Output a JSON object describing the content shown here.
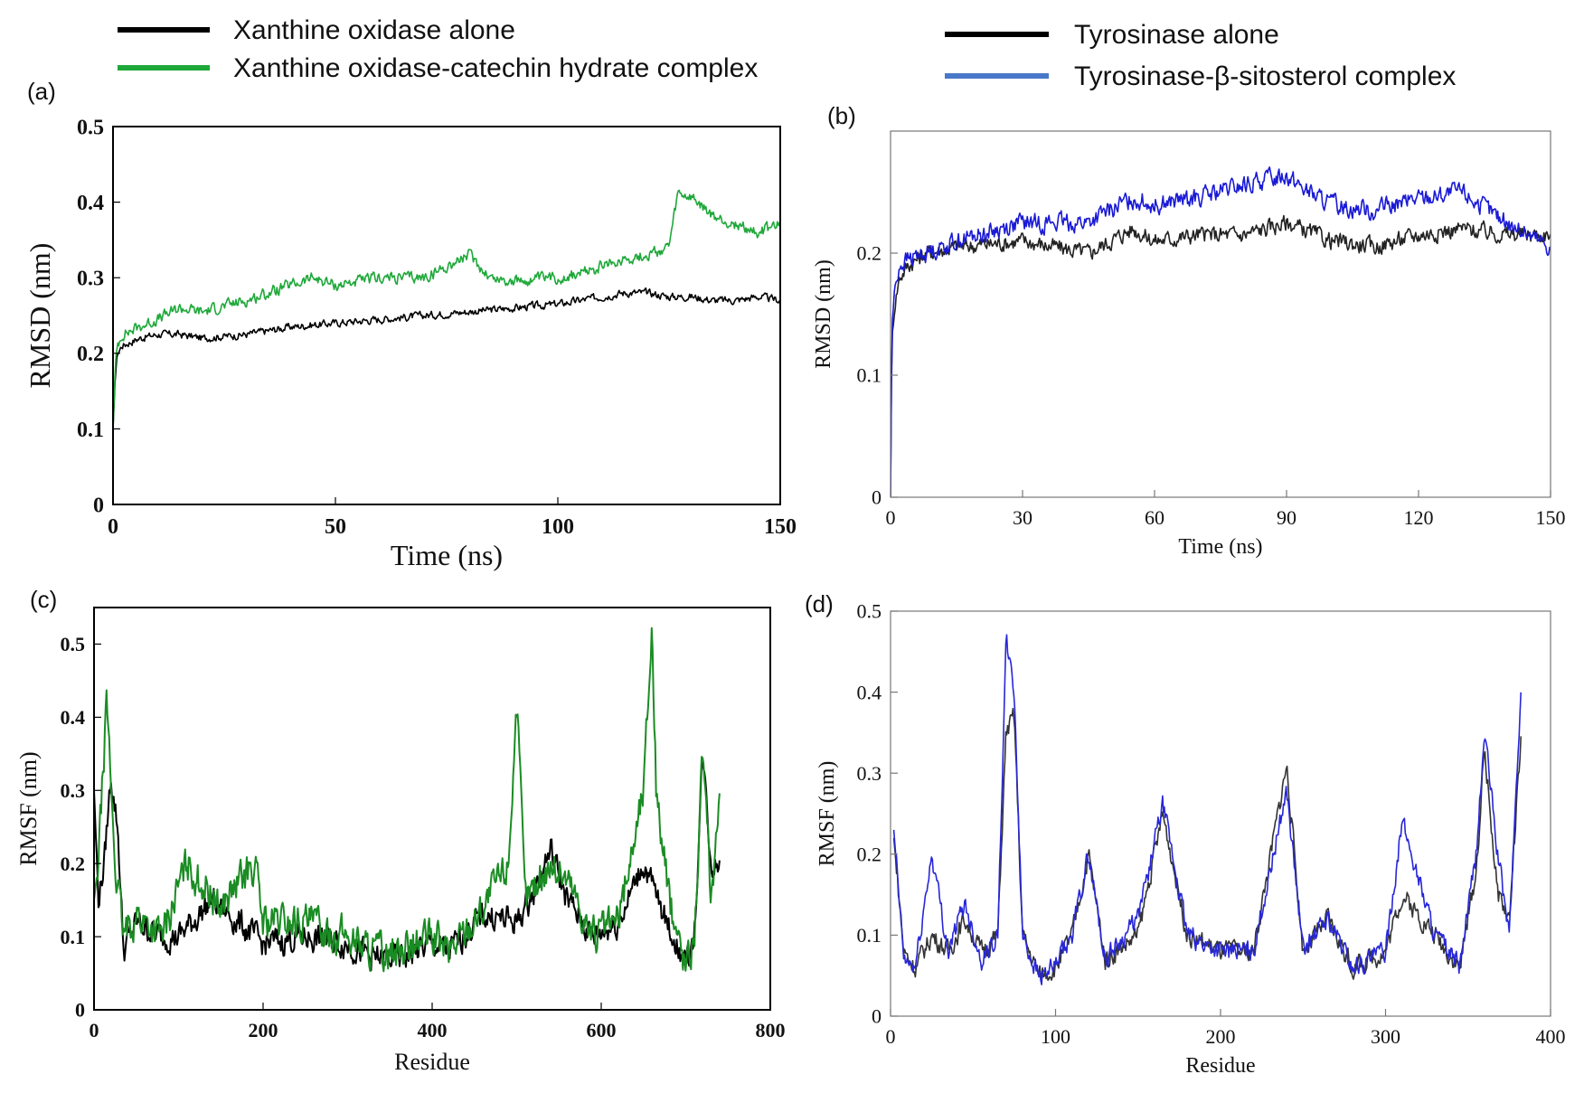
{
  "legends": {
    "left": [
      {
        "label": "Xanthine oxidase alone",
        "color": "#000000"
      },
      {
        "label": "Xanthine oxidase-catechin hydrate complex",
        "color": "#1fa83a"
      }
    ],
    "right": [
      {
        "label": "Tyrosinase alone",
        "color": "#000000"
      },
      {
        "label": "Tyrosinase-β-sitosterol complex",
        "color": "#4a78c8"
      }
    ]
  },
  "chart_data": [
    {
      "panel": "(a)",
      "type": "line",
      "xlabel": "Time (ns)",
      "ylabel": "RMSD (nm)",
      "xlim": [
        0,
        150
      ],
      "ylim": [
        0,
        0.5
      ],
      "xticks": [
        0,
        50,
        100,
        150
      ],
      "yticks": [
        0,
        0.1,
        0.2,
        0.3,
        0.4,
        0.5
      ],
      "grid": false,
      "series": [
        {
          "name": "Xanthine oxidase alone",
          "color": "#000000",
          "x": [
            0,
            0.5,
            1,
            2,
            4,
            6,
            10,
            15,
            20,
            30,
            40,
            50,
            60,
            70,
            80,
            90,
            100,
            105,
            110,
            115,
            120,
            125,
            130,
            135,
            140,
            145,
            150
          ],
          "y": [
            0.1,
            0.17,
            0.2,
            0.21,
            0.215,
            0.22,
            0.225,
            0.225,
            0.22,
            0.225,
            0.235,
            0.24,
            0.245,
            0.25,
            0.255,
            0.26,
            0.265,
            0.27,
            0.275,
            0.28,
            0.28,
            0.275,
            0.275,
            0.27,
            0.27,
            0.275,
            0.27
          ],
          "noise": 0.008
        },
        {
          "name": "Xanthine oxidase-catechin hydrate complex",
          "color": "#1fa83a",
          "x": [
            0,
            0.5,
            1,
            2,
            4,
            6,
            10,
            15,
            20,
            30,
            40,
            45,
            50,
            60,
            70,
            75,
            80,
            85,
            90,
            100,
            105,
            110,
            115,
            120,
            125,
            127,
            130,
            135,
            140,
            145,
            150
          ],
          "y": [
            0.1,
            0.18,
            0.21,
            0.225,
            0.23,
            0.235,
            0.245,
            0.26,
            0.255,
            0.27,
            0.29,
            0.3,
            0.29,
            0.3,
            0.3,
            0.315,
            0.33,
            0.3,
            0.295,
            0.3,
            0.305,
            0.315,
            0.325,
            0.33,
            0.34,
            0.41,
            0.405,
            0.38,
            0.37,
            0.36,
            0.37
          ],
          "noise": 0.012
        }
      ]
    },
    {
      "panel": "(b)",
      "type": "line",
      "xlabel": "Time (ns)",
      "ylabel": "RMSD (nm)",
      "xlim": [
        0,
        150
      ],
      "ylim": [
        0,
        0.3
      ],
      "xticks": [
        0,
        30,
        60,
        90,
        120,
        150
      ],
      "yticks": [
        0,
        0.1,
        0.2
      ],
      "grid": false,
      "series": [
        {
          "name": "Tyrosinase alone",
          "color": "#222222",
          "x": [
            0,
            0.3,
            1,
            2,
            4,
            8,
            15,
            30,
            45,
            55,
            60,
            70,
            80,
            90,
            100,
            110,
            120,
            130,
            140,
            150
          ],
          "y": [
            0.0,
            0.13,
            0.16,
            0.18,
            0.19,
            0.2,
            0.205,
            0.21,
            0.2,
            0.22,
            0.21,
            0.215,
            0.215,
            0.225,
            0.21,
            0.205,
            0.215,
            0.22,
            0.215,
            0.215
          ],
          "noise": 0.011
        },
        {
          "name": "Tyrosinase-β-sitosterol complex",
          "color": "#1a1ad6",
          "x": [
            0,
            0.3,
            1,
            2,
            4,
            8,
            15,
            30,
            45,
            55,
            60,
            70,
            80,
            90,
            95,
            100,
            110,
            120,
            130,
            140,
            150
          ],
          "y": [
            0.0,
            0.14,
            0.17,
            0.19,
            0.195,
            0.2,
            0.21,
            0.225,
            0.225,
            0.245,
            0.24,
            0.245,
            0.255,
            0.265,
            0.25,
            0.24,
            0.235,
            0.245,
            0.25,
            0.225,
            0.205
          ],
          "noise": 0.012
        }
      ]
    },
    {
      "panel": "(c)",
      "type": "line",
      "xlabel": "Residue",
      "ylabel": "RMSF (nm)",
      "xlim": [
        0,
        800
      ],
      "ylim": [
        0,
        0.55
      ],
      "xticks": [
        0,
        200,
        400,
        600,
        800
      ],
      "yticks": [
        0,
        0.1,
        0.2,
        0.3,
        0.4,
        0.5
      ],
      "grid": false,
      "series": [
        {
          "name": "Xanthine oxidase alone",
          "color": "#000000",
          "x": [
            0,
            5,
            12,
            20,
            28,
            35,
            50,
            80,
            100,
            140,
            190,
            200,
            250,
            300,
            330,
            360,
            400,
            420,
            460,
            500,
            520,
            540,
            560,
            590,
            620,
            650,
            670,
            700,
            710,
            720,
            730,
            740
          ],
          "y": [
            0.3,
            0.15,
            0.2,
            0.32,
            0.25,
            0.08,
            0.12,
            0.1,
            0.1,
            0.15,
            0.1,
            0.09,
            0.1,
            0.09,
            0.07,
            0.07,
            0.09,
            0.08,
            0.13,
            0.12,
            0.16,
            0.22,
            0.15,
            0.1,
            0.12,
            0.2,
            0.14,
            0.06,
            0.1,
            0.35,
            0.2,
            0.2
          ],
          "noise": 0.03
        },
        {
          "name": "Xanthine oxidase-catechin hydrate complex",
          "color": "#1a8c23",
          "x": [
            0,
            5,
            15,
            25,
            35,
            50,
            80,
            110,
            150,
            190,
            200,
            250,
            300,
            330,
            360,
            400,
            420,
            460,
            490,
            500,
            510,
            540,
            560,
            590,
            620,
            650,
            660,
            665,
            680,
            700,
            710,
            720,
            730,
            740
          ],
          "y": [
            0.15,
            0.2,
            0.42,
            0.2,
            0.1,
            0.13,
            0.1,
            0.2,
            0.14,
            0.2,
            0.12,
            0.12,
            0.1,
            0.08,
            0.08,
            0.1,
            0.08,
            0.14,
            0.2,
            0.42,
            0.15,
            0.2,
            0.18,
            0.1,
            0.12,
            0.3,
            0.53,
            0.3,
            0.15,
            0.06,
            0.1,
            0.35,
            0.15,
            0.3
          ],
          "noise": 0.04
        }
      ]
    },
    {
      "panel": "(d)",
      "type": "line",
      "xlabel": "Residue",
      "ylabel": "RMSF (nm)",
      "xlim": [
        0,
        400
      ],
      "ylim": [
        0,
        0.5
      ],
      "xticks": [
        0,
        100,
        200,
        300,
        400
      ],
      "yticks": [
        0,
        0.1,
        0.2,
        0.3,
        0.4,
        0.5
      ],
      "grid": false,
      "series": [
        {
          "name": "Tyrosinase alone",
          "color": "#333333",
          "x": [
            2,
            8,
            15,
            25,
            35,
            45,
            55,
            65,
            70,
            75,
            80,
            90,
            100,
            110,
            120,
            130,
            150,
            165,
            180,
            200,
            220,
            240,
            250,
            265,
            280,
            300,
            310,
            330,
            345,
            355,
            360,
            368,
            375,
            382
          ],
          "y": [
            0.22,
            0.08,
            0.06,
            0.1,
            0.08,
            0.12,
            0.08,
            0.1,
            0.35,
            0.37,
            0.1,
            0.05,
            0.06,
            0.1,
            0.2,
            0.07,
            0.1,
            0.25,
            0.1,
            0.08,
            0.08,
            0.31,
            0.08,
            0.12,
            0.06,
            0.08,
            0.15,
            0.1,
            0.06,
            0.18,
            0.33,
            0.15,
            0.12,
            0.34
          ],
          "noise": 0.02
        },
        {
          "name": "Tyrosinase-β-sitosterol complex",
          "color": "#2727d8",
          "x": [
            2,
            8,
            15,
            25,
            35,
            45,
            55,
            65,
            70,
            75,
            80,
            90,
            100,
            110,
            120,
            130,
            150,
            165,
            180,
            200,
            220,
            240,
            250,
            265,
            280,
            300,
            310,
            330,
            345,
            355,
            360,
            368,
            375,
            382
          ],
          "y": [
            0.23,
            0.07,
            0.06,
            0.2,
            0.08,
            0.14,
            0.07,
            0.1,
            0.46,
            0.4,
            0.1,
            0.05,
            0.06,
            0.1,
            0.2,
            0.07,
            0.12,
            0.26,
            0.1,
            0.08,
            0.08,
            0.28,
            0.08,
            0.12,
            0.06,
            0.08,
            0.24,
            0.1,
            0.06,
            0.2,
            0.35,
            0.2,
            0.1,
            0.4
          ],
          "noise": 0.02
        }
      ]
    }
  ]
}
